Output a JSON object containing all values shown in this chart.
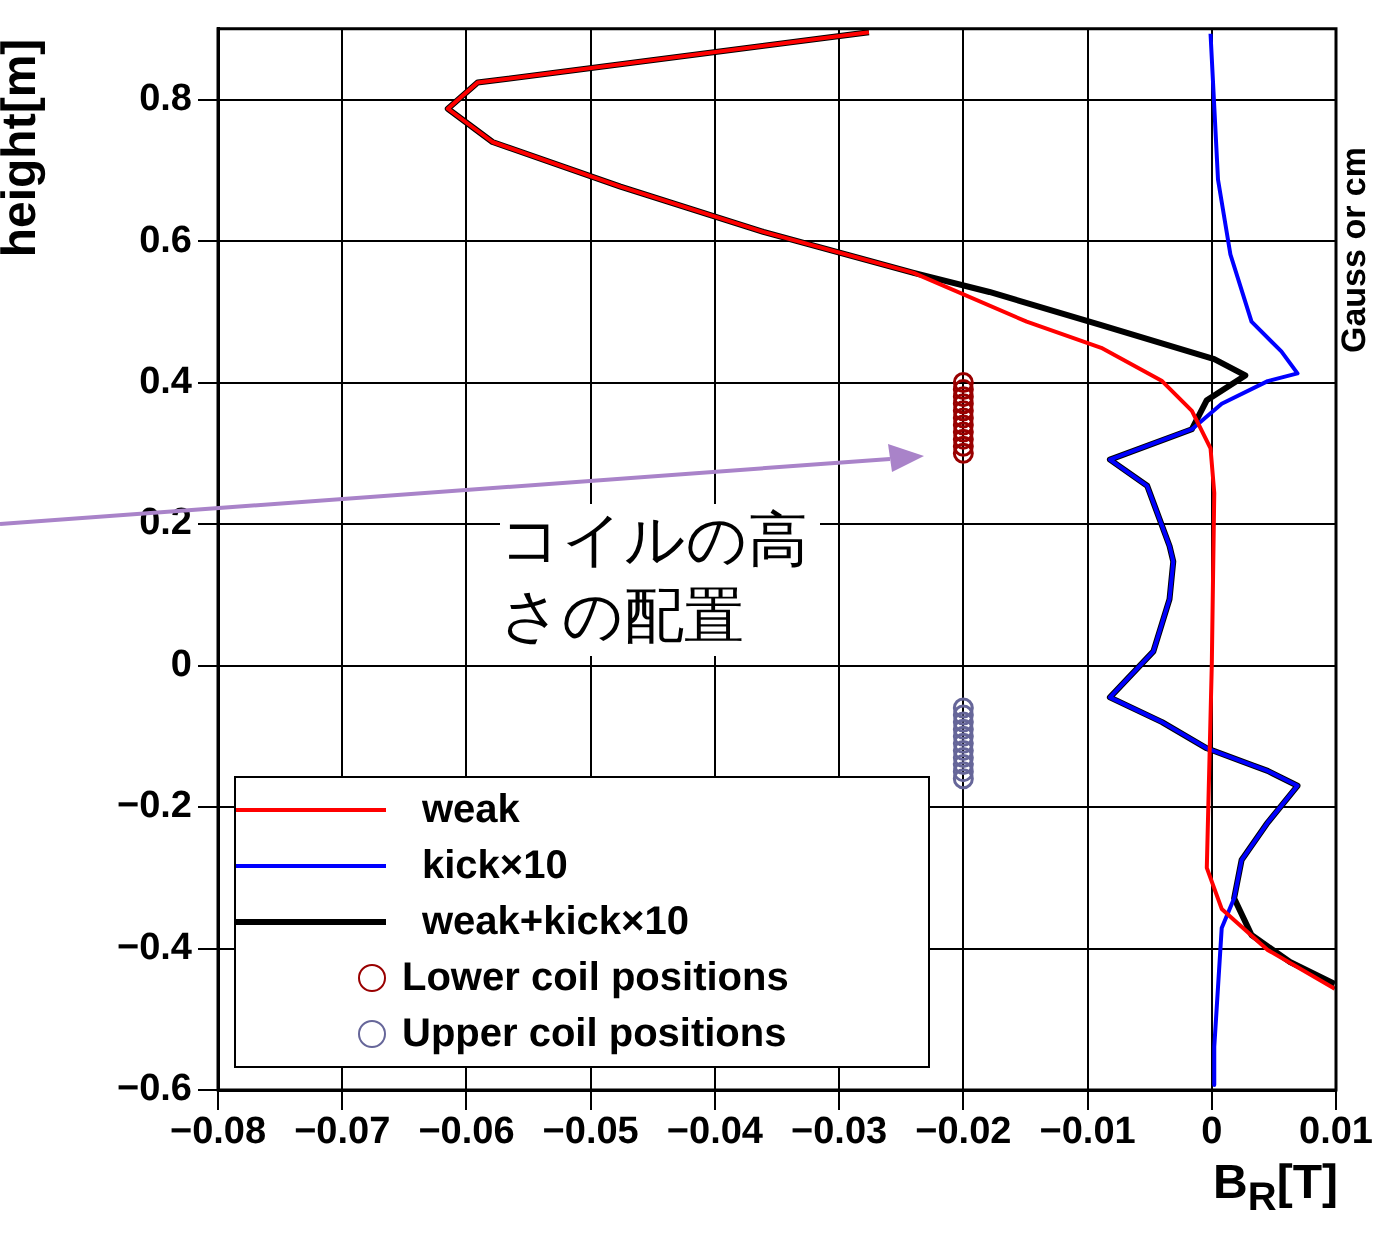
{
  "chart_data": {
    "type": "line",
    "xlabel": "B$_{R}$[T]",
    "ylabel": "height[m]",
    "xlim": [
      -0.08,
      0.01
    ],
    "xticks": [
      -0.08,
      -0.07,
      -0.06,
      -0.05,
      -0.04,
      -0.03,
      -0.02,
      -0.01,
      0,
      0.01
    ],
    "ylim": [
      -0.6,
      0.9
    ],
    "yticks": [
      -0.6,
      -0.4,
      -0.2,
      0,
      0.2,
      0.4,
      0.6,
      0.8
    ],
    "grid": true,
    "legend": "bottom left",
    "annotations": [
      "Gauss or cm",
      "コイルの高さの配置"
    ],
    "series": [
      {
        "name": "weak",
        "color": "#ff0000",
        "x": [
          -0.0276,
          -0.0591,
          -0.0615,
          -0.0579,
          -0.0476,
          -0.0361,
          -0.024,
          -0.0149,
          -0.0089,
          -0.004,
          -0.0016,
          -0.0001,
          0.0002,
          0.0,
          -0.0004,
          0.0008,
          0.0045,
          0.0099
        ],
        "values": [
          0.895,
          0.824,
          0.787,
          0.74,
          0.677,
          0.613,
          0.555,
          0.486,
          0.449,
          0.402,
          0.36,
          0.307,
          0.244,
          0.0,
          -0.286,
          -0.344,
          -0.402,
          -0.457
        ]
      },
      {
        "name": "kick×10",
        "color": "#0000ff",
        "x": [
          -0.0001,
          0.0005,
          0.0015,
          0.0032,
          0.0056,
          0.0069,
          0.0045,
          0.0008,
          -0.0016,
          -0.0082,
          -0.0052,
          -0.0034,
          -0.0031,
          -0.0034,
          -0.0047,
          -0.0082,
          -0.004,
          -0.0004,
          0.0045,
          0.0069,
          0.0045,
          0.0024,
          0.0018,
          0.0008,
          0.0002,
          0.0002
        ],
        "values": [
          0.893,
          0.687,
          0.581,
          0.486,
          0.444,
          0.413,
          0.402,
          0.37,
          0.334,
          0.291,
          0.254,
          0.169,
          0.147,
          0.094,
          0.02,
          -0.045,
          -0.08,
          -0.117,
          -0.149,
          -0.17,
          -0.222,
          -0.275,
          -0.329,
          -0.371,
          -0.539,
          -0.593
        ]
      },
      {
        "name": "weak+kick×10",
        "color": "#000000",
        "x": [
          -0.0276,
          -0.0591,
          -0.0615,
          -0.0579,
          -0.0476,
          -0.0361,
          -0.024,
          -0.0179,
          -0.0089,
          0.0002,
          0.0027,
          -0.0004,
          -0.0016,
          -0.0082,
          -0.0052,
          -0.0034,
          -0.0031,
          -0.0034,
          -0.0047,
          -0.0082,
          -0.004,
          -0.0004,
          0.0045,
          0.0069,
          0.0045,
          0.0024,
          0.0018,
          0.0032,
          0.0063,
          0.0099
        ],
        "values": [
          0.895,
          0.824,
          0.787,
          0.74,
          0.677,
          0.613,
          0.555,
          0.528,
          0.481,
          0.433,
          0.41,
          0.375,
          0.334,
          0.291,
          0.254,
          0.169,
          0.147,
          0.094,
          0.02,
          -0.045,
          -0.08,
          -0.117,
          -0.149,
          -0.17,
          -0.222,
          -0.275,
          -0.329,
          -0.381,
          -0.419,
          -0.45
        ]
      },
      {
        "name": "Lower coil positions",
        "type": "scatter",
        "marker": "circle",
        "color": "#990000",
        "x": [
          -0.02,
          -0.02,
          -0.02,
          -0.02,
          -0.02,
          -0.02,
          -0.02,
          -0.02,
          -0.02,
          -0.02,
          -0.02
        ],
        "values": [
          0.3,
          0.31,
          0.32,
          0.33,
          0.34,
          0.35,
          0.36,
          0.37,
          0.38,
          0.39,
          0.4
        ]
      },
      {
        "name": "Upper coil positions",
        "type": "scatter",
        "marker": "circle",
        "color": "#666699",
        "x": [
          -0.02,
          -0.02,
          -0.02,
          -0.02,
          -0.02,
          -0.02,
          -0.02,
          -0.02,
          -0.02,
          -0.02,
          -0.02
        ],
        "values": [
          -0.06,
          -0.07,
          -0.08,
          -0.09,
          -0.1,
          -0.11,
          -0.12,
          -0.13,
          -0.14,
          -0.15,
          -0.16
        ]
      }
    ]
  }
}
